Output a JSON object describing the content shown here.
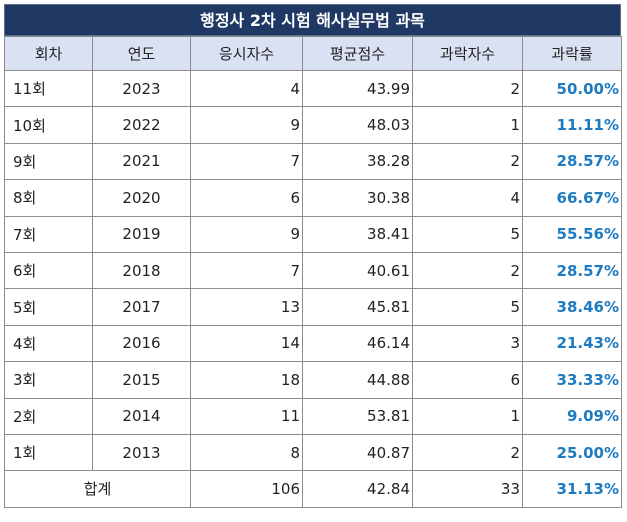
{
  "title": "행정사 2차 시험 해사실무법 과목",
  "headers": [
    "회차",
    "연도",
    "응시자수",
    "평균점수",
    "과락자수",
    "과락률"
  ],
  "rows": [
    [
      "11회",
      "2023",
      "4",
      "43.99",
      "2",
      "50.00%"
    ],
    [
      "10회",
      "2022",
      "9",
      "48.03",
      "1",
      "11.11%"
    ],
    [
      "9회",
      "2021",
      "7",
      "38.28",
      "2",
      "28.57%"
    ],
    [
      "8회",
      "2020",
      "6",
      "30.38",
      "4",
      "66.67%"
    ],
    [
      "7회",
      "2019",
      "9",
      "38.41",
      "5",
      "55.56%"
    ],
    [
      "6회",
      "2018",
      "7",
      "40.61",
      "2",
      "28.57%"
    ],
    [
      "5회",
      "2017",
      "13",
      "45.81",
      "5",
      "38.46%"
    ],
    [
      "4회",
      "2016",
      "14",
      "46.14",
      "3",
      "21.43%"
    ],
    [
      "3회",
      "2015",
      "18",
      "44.88",
      "6",
      "33.33%"
    ],
    [
      "2회",
      "2014",
      "11",
      "53.81",
      "1",
      "9.09%"
    ],
    [
      "1회",
      "2013",
      "8",
      "40.87",
      "2",
      "25.00%"
    ]
  ],
  "total": {
    "label": "합계",
    "applicants": "106",
    "avg": "42.84",
    "fail": "33",
    "rate": "31.13%"
  }
}
